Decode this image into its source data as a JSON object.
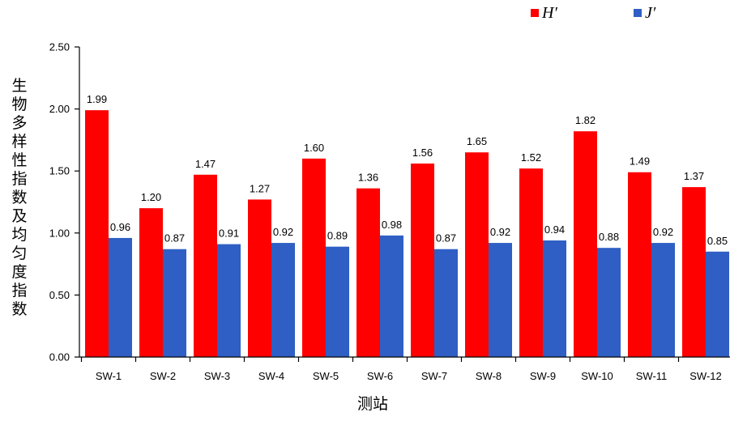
{
  "chart_data": {
    "type": "bar",
    "title": "",
    "xlabel": "测站",
    "ylabel": "生物多样性指数及均匀度指数",
    "ylim": [
      0,
      2.5
    ],
    "yticks": [
      "0.00",
      "0.50",
      "1.00",
      "1.50",
      "2.00",
      "2.50"
    ],
    "categories": [
      "SW-1",
      "SW-2",
      "SW-3",
      "SW-4",
      "SW-5",
      "SW-6",
      "SW-7",
      "SW-8",
      "SW-9",
      "SW-10",
      "SW-11",
      "SW-12"
    ],
    "series": [
      {
        "name": "H′",
        "color": "#ff0000",
        "values": [
          1.99,
          1.2,
          1.47,
          1.27,
          1.6,
          1.36,
          1.56,
          1.65,
          1.52,
          1.82,
          1.49,
          1.37
        ]
      },
      {
        "name": "J′",
        "color": "#2f5fc4",
        "values": [
          0.96,
          0.87,
          0.91,
          0.92,
          0.89,
          0.98,
          0.87,
          0.92,
          0.94,
          0.88,
          0.92,
          0.85
        ]
      }
    ],
    "grid": false,
    "legend": "top-right"
  }
}
